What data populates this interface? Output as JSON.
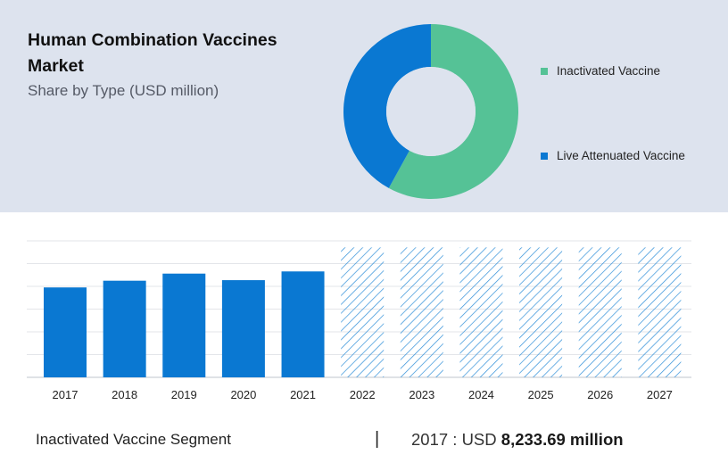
{
  "header": {
    "title": "Human Combination Vaccines Market",
    "subtitle": "Share by Type (USD million)"
  },
  "colors": {
    "inactivated": "#55c296",
    "live_attenuated": "#0a78d2",
    "bar": "#0a78d2",
    "forecast_hatch": "#2f8fd8"
  },
  "chart_data": [
    {
      "type": "pie",
      "title": "",
      "labels": [
        "Inactivated Vaccine",
        "Live Attenuated Vaccine"
      ],
      "values": [
        58,
        42
      ],
      "legend": "right"
    },
    {
      "type": "bar",
      "title": "",
      "categories": [
        "2017",
        "2018",
        "2019",
        "2020",
        "2021",
        "2022",
        "2023",
        "2024",
        "2025",
        "2026",
        "2027"
      ],
      "values": [
        8233.69,
        8850,
        9500,
        8900,
        9700,
        null,
        null,
        null,
        null,
        null,
        null
      ],
      "forecast_categories": [
        "2022",
        "2023",
        "2024",
        "2025",
        "2026",
        "2027"
      ],
      "ylim": [
        0,
        12500
      ],
      "grid": true,
      "xlabel": "",
      "ylabel": ""
    }
  ],
  "footer": {
    "segment_label": "Inactivated Vaccine Segment",
    "divider": "|",
    "year_label": "2017 : USD",
    "amount": "8,233.69 million"
  }
}
